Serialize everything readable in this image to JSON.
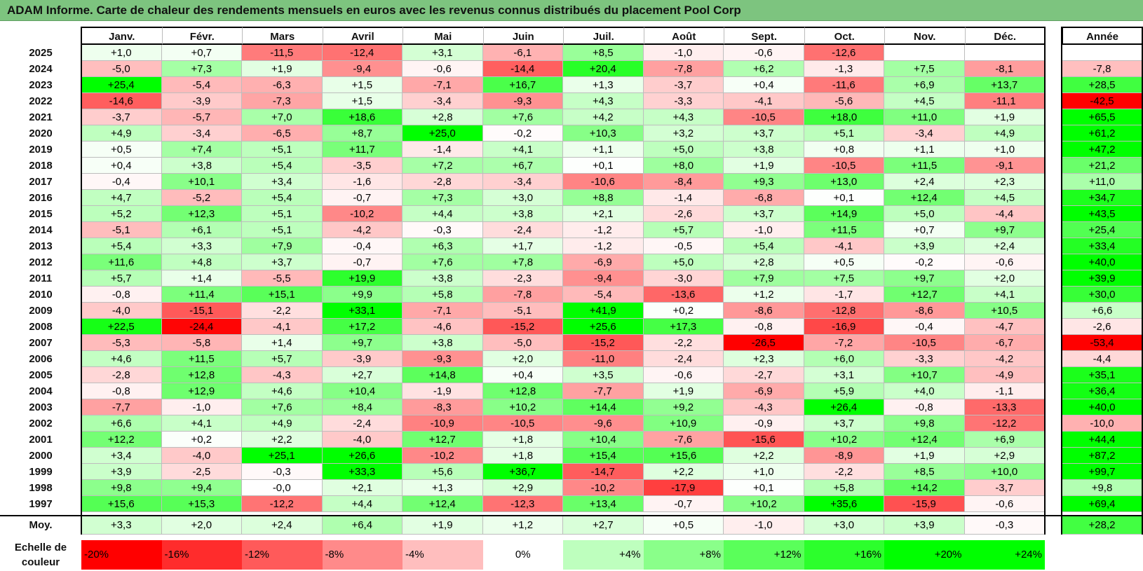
{
  "title": "ADAM Informe. Carte de chaleur des rendements mensuels en euros avec les revenus connus distribués du placement Pool Corp",
  "chart_data": {
    "type": "heatmap",
    "months": [
      "Janv.",
      "Févr.",
      "Mars",
      "Avril",
      "Mai",
      "Juin",
      "Juil.",
      "Août",
      "Sept.",
      "Oct.",
      "Nov.",
      "Déc."
    ],
    "year_header": "Année",
    "rows": [
      {
        "year": "2025",
        "m": [
          "+1,0",
          "+0,7",
          "-11,5",
          "-12,4",
          "+3,1",
          "-6,1",
          "+8,5",
          "-1,0",
          "-0,6",
          "-12,6",
          "",
          ""
        ],
        "y": ""
      },
      {
        "year": "2024",
        "m": [
          "-5,0",
          "+7,3",
          "+1,9",
          "-9,4",
          "-0,6",
          "-14,4",
          "+20,4",
          "-7,8",
          "+6,2",
          "-1,3",
          "+7,5",
          "-8,1"
        ],
        "y": "-7,8"
      },
      {
        "year": "2023",
        "m": [
          "+25,4",
          "-5,4",
          "-6,3",
          "+1,5",
          "-7,1",
          "+16,7",
          "+1,3",
          "-3,7",
          "+0,4",
          "-11,6",
          "+6,9",
          "+13,7"
        ],
        "y": "+28,5"
      },
      {
        "year": "2022",
        "m": [
          "-14,6",
          "-3,9",
          "-7,3",
          "+1,5",
          "-3,4",
          "-9,3",
          "+4,3",
          "-3,3",
          "-4,1",
          "-5,6",
          "+4,5",
          "-11,1"
        ],
        "y": "-42,5"
      },
      {
        "year": "2021",
        "m": [
          "-3,7",
          "-5,7",
          "+7,0",
          "+18,6",
          "+2,8",
          "+7,6",
          "+4,2",
          "+4,3",
          "-10,5",
          "+18,0",
          "+11,0",
          "+1,9"
        ],
        "y": "+65,5"
      },
      {
        "year": "2020",
        "m": [
          "+4,9",
          "-3,4",
          "-6,5",
          "+8,7",
          "+25,0",
          "-0,2",
          "+10,3",
          "+3,2",
          "+3,7",
          "+5,1",
          "-3,4",
          "+4,9"
        ],
        "y": "+61,2"
      },
      {
        "year": "2019",
        "m": [
          "+0,5",
          "+7,4",
          "+5,1",
          "+11,7",
          "-1,4",
          "+4,1",
          "+1,1",
          "+5,0",
          "+3,8",
          "+0,8",
          "+1,1",
          "+1,0"
        ],
        "y": "+47,2"
      },
      {
        "year": "2018",
        "m": [
          "+0,4",
          "+3,8",
          "+5,4",
          "-3,5",
          "+7,2",
          "+6,7",
          "+0,1",
          "+8,0",
          "+1,9",
          "-10,5",
          "+11,5",
          "-9,1"
        ],
        "y": "+21,2"
      },
      {
        "year": "2017",
        "m": [
          "-0,4",
          "+10,1",
          "+3,4",
          "-1,6",
          "-2,8",
          "-3,4",
          "-10,6",
          "-8,4",
          "+9,3",
          "+13,0",
          "+2,4",
          "+2,3"
        ],
        "y": "+11,0"
      },
      {
        "year": "2016",
        "m": [
          "+4,7",
          "-5,2",
          "+5,4",
          "-0,7",
          "+7,3",
          "+3,0",
          "+8,8",
          "-1,4",
          "-6,8",
          "+0,1",
          "+12,4",
          "+4,5"
        ],
        "y": "+34,7"
      },
      {
        "year": "2015",
        "m": [
          "+5,2",
          "+12,3",
          "+5,1",
          "-10,2",
          "+4,4",
          "+3,8",
          "+2,1",
          "-2,6",
          "+3,7",
          "+14,9",
          "+5,0",
          "-4,4"
        ],
        "y": "+43,5"
      },
      {
        "year": "2014",
        "m": [
          "-5,1",
          "+6,1",
          "+5,1",
          "-4,2",
          "-0,3",
          "-2,4",
          "-1,2",
          "+5,7",
          "-1,0",
          "+11,5",
          "+0,7",
          "+9,7"
        ],
        "y": "+25,4"
      },
      {
        "year": "2013",
        "m": [
          "+5,4",
          "+3,3",
          "+7,9",
          "-0,4",
          "+6,3",
          "+1,7",
          "-1,2",
          "-0,5",
          "+5,4",
          "-4,1",
          "+3,9",
          "+2,4"
        ],
        "y": "+33,4"
      },
      {
        "year": "2012",
        "m": [
          "+11,6",
          "+4,8",
          "+3,7",
          "-0,7",
          "+7,6",
          "+7,8",
          "-6,9",
          "+5,0",
          "+2,8",
          "+0,5",
          "-0,2",
          "-0,6"
        ],
        "y": "+40,0"
      },
      {
        "year": "2011",
        "m": [
          "+5,7",
          "+1,4",
          "-5,5",
          "+19,9",
          "+3,8",
          "-2,3",
          "-9,4",
          "-3,0",
          "+7,9",
          "+7,5",
          "+9,7",
          "+2,0"
        ],
        "y": "+39,9"
      },
      {
        "year": "2010",
        "m": [
          "-0,8",
          "+11,4",
          "+15,1",
          "+9,9",
          "+5,8",
          "-7,8",
          "-5,4",
          "-13,6",
          "+1,2",
          "-1,7",
          "+12,7",
          "+4,1"
        ],
        "y": "+30,0"
      },
      {
        "year": "2009",
        "m": [
          "-4,0",
          "-15,1",
          "-2,2",
          "+33,1",
          "-7,1",
          "-5,1",
          "+41,9",
          "+0,2",
          "-8,6",
          "-12,8",
          "-8,6",
          "+10,5"
        ],
        "y": "+6,6"
      },
      {
        "year": "2008",
        "m": [
          "+22,5",
          "-24,4",
          "-4,1",
          "+17,2",
          "-4,6",
          "-15,2",
          "+25,6",
          "+17,3",
          "-0,8",
          "-16,9",
          "-0,4",
          "-4,7"
        ],
        "y": "-2,6"
      },
      {
        "year": "2007",
        "m": [
          "-5,3",
          "-5,8",
          "+1,4",
          "+9,7",
          "+3,8",
          "-5,0",
          "-15,2",
          "-2,2",
          "-26,5",
          "-7,2",
          "-10,5",
          "-6,7"
        ],
        "y": "-53,4"
      },
      {
        "year": "2006",
        "m": [
          "+4,6",
          "+11,5",
          "+5,7",
          "-3,9",
          "-9,3",
          "+2,0",
          "-11,0",
          "-2,4",
          "+2,3",
          "+6,0",
          "-3,3",
          "-4,2"
        ],
        "y": "-4,4"
      },
      {
        "year": "2005",
        "m": [
          "-2,8",
          "+12,8",
          "-4,3",
          "+2,7",
          "+14,8",
          "+0,4",
          "+3,5",
          "-0,6",
          "-2,7",
          "+3,1",
          "+10,7",
          "-4,9"
        ],
        "y": "+35,1"
      },
      {
        "year": "2004",
        "m": [
          "-0,8",
          "+12,9",
          "+4,6",
          "+10,4",
          "-1,9",
          "+12,8",
          "-7,7",
          "+1,9",
          "-6,9",
          "+5,9",
          "+4,0",
          "-1,1"
        ],
        "y": "+36,4"
      },
      {
        "year": "2003",
        "m": [
          "-7,7",
          "-1,0",
          "+7,6",
          "+8,4",
          "-8,3",
          "+10,2",
          "+14,4",
          "+9,2",
          "-4,3",
          "+26,4",
          "-0,8",
          "-13,3"
        ],
        "y": "+40,0"
      },
      {
        "year": "2002",
        "m": [
          "+6,6",
          "+4,1",
          "+4,9",
          "-2,4",
          "-10,9",
          "-10,5",
          "-9,6",
          "+10,9",
          "-0,9",
          "+3,7",
          "+9,8",
          "-12,2"
        ],
        "y": "-10,0"
      },
      {
        "year": "2001",
        "m": [
          "+12,2",
          "+0,2",
          "+2,2",
          "-4,0",
          "+12,7",
          "+1,8",
          "+10,4",
          "-7,6",
          "-15,6",
          "+10,2",
          "+12,4",
          "+6,9"
        ],
        "y": "+44,4"
      },
      {
        "year": "2000",
        "m": [
          "+3,4",
          "-4,0",
          "+25,1",
          "+26,6",
          "-10,2",
          "+1,8",
          "+15,4",
          "+15,6",
          "+2,2",
          "-8,9",
          "+1,9",
          "+2,9"
        ],
        "y": "+87,2"
      },
      {
        "year": "1999",
        "m": [
          "+3,9",
          "-2,5",
          "-0,3",
          "+33,3",
          "+5,6",
          "+36,7",
          "-14,7",
          "+2,2",
          "+1,0",
          "-2,2",
          "+8,5",
          "+10,0"
        ],
        "y": "+99,7"
      },
      {
        "year": "1998",
        "m": [
          "+9,8",
          "+9,4",
          "-0,0",
          "+2,1",
          "+1,3",
          "+2,9",
          "-10,2",
          "-17,9",
          "+0,1",
          "+5,8",
          "+14,2",
          "-3,7"
        ],
        "y": "+9,8"
      },
      {
        "year": "1997",
        "m": [
          "+15,6",
          "+15,3",
          "-12,2",
          "+4,4",
          "+12,4",
          "-12,3",
          "+13,4",
          "-0,7",
          "+10,2",
          "+35,6",
          "-15,9",
          "-0,6"
        ],
        "y": "+69,4"
      }
    ],
    "average": {
      "label": "Moy.",
      "m": [
        "+3,3",
        "+2,0",
        "+2,4",
        "+6,4",
        "+1,9",
        "+1,2",
        "+2,7",
        "+0,5",
        "-1,0",
        "+3,0",
        "+3,9",
        "-0,3"
      ],
      "y": "+28,2"
    },
    "legend": {
      "label": "Echelle de couleur",
      "steps": [
        "-20%",
        "-16%",
        "-12%",
        "-8%",
        "-4%",
        "0%",
        "+4%",
        "+8%",
        "+12%",
        "+16%",
        "+20%",
        "+24%"
      ],
      "values": [
        -20,
        -16,
        -12,
        -8,
        -4,
        0,
        4,
        8,
        12,
        16,
        20,
        24
      ]
    },
    "colors": {
      "negative": "#ff0000",
      "positive": "#00ff00",
      "neutral": "#ffffff"
    }
  }
}
